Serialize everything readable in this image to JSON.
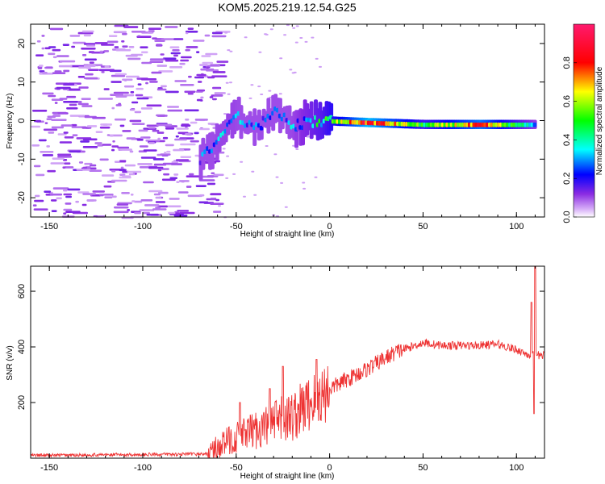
{
  "title": "KOM5.2025.219.12.54.G25",
  "chart_data": [
    {
      "type": "heatmap",
      "name": "spectrogram",
      "xlabel": "Height of straight line (km)",
      "ylabel": "Frequency (Hz)",
      "xlim": [
        -160,
        115
      ],
      "ylim": [
        -25,
        25
      ],
      "xticks": [
        -150,
        -100,
        -50,
        0,
        50,
        100
      ],
      "yticks": [
        -20,
        -10,
        0,
        10,
        20
      ],
      "colorbar": {
        "label": "Normalized spectral amplitude",
        "range": [
          0,
          1
        ],
        "ticks": [
          0.0,
          0.2,
          0.4,
          0.6,
          0.8
        ],
        "tick_labels": [
          "0.0",
          "0.2",
          "0.4",
          "0.6",
          "0.8"
        ]
      },
      "ridge": {
        "description_points": [
          {
            "x": -70,
            "y": -10,
            "amp": 0.25
          },
          {
            "x": -60,
            "y": -5,
            "amp": 0.3
          },
          {
            "x": -52,
            "y": 2,
            "amp": 0.3
          },
          {
            "x": -40,
            "y": -2,
            "amp": 0.25
          },
          {
            "x": -30,
            "y": 2,
            "amp": 0.25
          },
          {
            "x": -20,
            "y": -1,
            "amp": 0.3
          },
          {
            "x": -5,
            "y": 0,
            "amp": 0.45
          },
          {
            "x": 20,
            "y": -0.5,
            "amp": 0.9
          },
          {
            "x": 50,
            "y": -1,
            "amp": 0.5
          },
          {
            "x": 80,
            "y": -1,
            "amp": 0.8
          },
          {
            "x": 110,
            "y": -1,
            "amp": 0.3
          }
        ]
      }
    },
    {
      "type": "line",
      "name": "snr",
      "xlabel": "Height of straight line (km)",
      "ylabel": "SNR (v/v)",
      "xlim": [
        -160,
        115
      ],
      "ylim": [
        0,
        690
      ],
      "xticks": [
        -150,
        -100,
        -50,
        0,
        50,
        100
      ],
      "yticks": [
        200,
        400,
        600
      ],
      "color": "#ee3333",
      "trend": [
        {
          "x": -160,
          "y": 10
        },
        {
          "x": -65,
          "y": 15
        },
        {
          "x": -55,
          "y": 60
        },
        {
          "x": -40,
          "y": 100
        },
        {
          "x": -20,
          "y": 150
        },
        {
          "x": 0,
          "y": 250
        },
        {
          "x": 20,
          "y": 320
        },
        {
          "x": 35,
          "y": 380
        },
        {
          "x": 50,
          "y": 415
        },
        {
          "x": 60,
          "y": 405
        },
        {
          "x": 80,
          "y": 405
        },
        {
          "x": 90,
          "y": 410
        },
        {
          "x": 100,
          "y": 390
        },
        {
          "x": 107,
          "y": 370
        },
        {
          "x": 115,
          "y": 370
        }
      ],
      "spikes": [
        {
          "x": -48,
          "y": 200
        },
        {
          "x": -32,
          "y": 250
        },
        {
          "x": -25,
          "y": 330
        },
        {
          "x": -7,
          "y": 355
        },
        {
          "x": 108,
          "y": 560
        },
        {
          "x": 109.5,
          "y": 160
        },
        {
          "x": 110,
          "y": 690
        }
      ]
    }
  ]
}
